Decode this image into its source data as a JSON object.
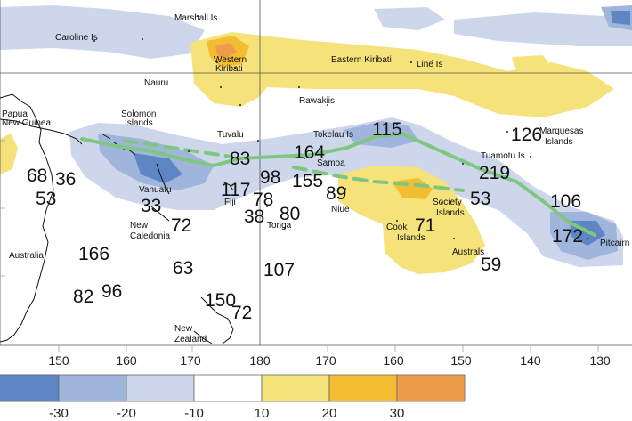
{
  "colors": {
    "neg30": "#5f86c4",
    "neg20": "#9fb5dc",
    "neg10": "#cdd6ea",
    "pos10": "#f6e27a",
    "pos20": "#f3bd32",
    "pos30": "#ee9c4c",
    "spcz": "#7fc77f"
  },
  "places": [
    {
      "name": "Marshall Is"
    },
    {
      "name": "Caroline Is"
    },
    {
      "name": "Western"
    },
    {
      "name": "Kiribati"
    },
    {
      "name": "Eastern Kiribati"
    },
    {
      "name": "Line Is"
    },
    {
      "name": "Nauru"
    },
    {
      "name": "Rawakiis"
    },
    {
      "name": "Papua"
    },
    {
      "name": "New Guinea"
    },
    {
      "name": "Solomon"
    },
    {
      "name": "Islands"
    },
    {
      "name": "Tuvalu"
    },
    {
      "name": "Tokelau Is"
    },
    {
      "name": "Marquesas"
    },
    {
      "name": "Islands"
    },
    {
      "name": "Tuamotu Is"
    },
    {
      "name": "Samoa"
    },
    {
      "name": "Fiji"
    },
    {
      "name": "Vanuatu"
    },
    {
      "name": "New"
    },
    {
      "name": "Caledonia"
    },
    {
      "name": "Tonga"
    },
    {
      "name": "Niue"
    },
    {
      "name": "Society"
    },
    {
      "name": "Islands"
    },
    {
      "name": "Cook"
    },
    {
      "name": "Islands"
    },
    {
      "name": "Australs"
    },
    {
      "name": "Pitcairn"
    },
    {
      "name": "Australia"
    },
    {
      "name": "New"
    },
    {
      "name": "Zealand"
    }
  ],
  "values": [
    {
      "v": "115"
    },
    {
      "v": "126"
    },
    {
      "v": "164"
    },
    {
      "v": "83"
    },
    {
      "v": "219"
    },
    {
      "v": "98"
    },
    {
      "v": "155"
    },
    {
      "v": "89"
    },
    {
      "v": "53"
    },
    {
      "v": "117"
    },
    {
      "v": "78"
    },
    {
      "v": "106"
    },
    {
      "v": "68"
    },
    {
      "v": "36"
    },
    {
      "v": "53"
    },
    {
      "v": "33"
    },
    {
      "v": "38"
    },
    {
      "v": "80"
    },
    {
      "v": "71"
    },
    {
      "v": "72"
    },
    {
      "v": "172"
    },
    {
      "v": "166"
    },
    {
      "v": "59"
    },
    {
      "v": "63"
    },
    {
      "v": "107"
    },
    {
      "v": "82"
    },
    {
      "v": "96"
    },
    {
      "v": "150"
    },
    {
      "v": "72"
    }
  ],
  "longitude_labels": [
    "150",
    "160",
    "170",
    "180",
    "170",
    "160",
    "150",
    "140",
    "130"
  ],
  "legend": {
    "ticks": [
      "-30",
      "-20",
      "-10",
      "10",
      "20",
      "30"
    ]
  }
}
